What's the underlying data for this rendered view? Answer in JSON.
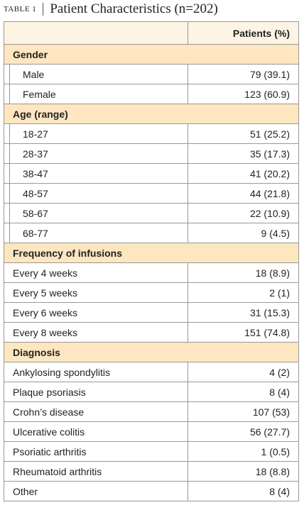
{
  "header": {
    "label": "TABLE 1",
    "title": "Patient Characteristics (n=202)"
  },
  "table": {
    "column_header": "Patients (%)",
    "sections": [
      {
        "label": "Gender",
        "rows": [
          [
            "Male",
            "79 (39.1)"
          ],
          [
            "Female",
            "123 (60.9)"
          ]
        ]
      },
      {
        "label": "Age (range)",
        "rows": [
          [
            "18-27",
            "51 (25.2)"
          ],
          [
            "28-37",
            "35 (17.3)"
          ],
          [
            "38-47",
            "41 (20.2)"
          ],
          [
            "48-57",
            "44 (21.8)"
          ],
          [
            "58-67",
            "22 (10.9)"
          ],
          [
            "68-77",
            "9 (4.5)"
          ]
        ]
      },
      {
        "label": "Frequency of infusions",
        "rows": [
          [
            "Every 4 weeks",
            "18 (8.9)"
          ],
          [
            "Every 5 weeks",
            "2 (1)"
          ],
          [
            "Every 6 weeks",
            "31 (15.3)"
          ],
          [
            "Every 8 weeks",
            "151 (74.8)"
          ]
        ]
      },
      {
        "label": "Diagnosis",
        "rows": [
          [
            "Ankylosing spondylitis",
            "4 (2)"
          ],
          [
            "Plaque psoriasis",
            "8 (4)"
          ],
          [
            "Crohn’s disease",
            "107 (53)"
          ],
          [
            "Ulcerative colitis",
            "56 (27.7)"
          ],
          [
            "Psoriatic arthritis",
            "1 (0.5)"
          ],
          [
            "Rheumatoid arthritis",
            "18 (8.8)"
          ],
          [
            "Other",
            "8 (4)"
          ]
        ]
      }
    ]
  }
}
